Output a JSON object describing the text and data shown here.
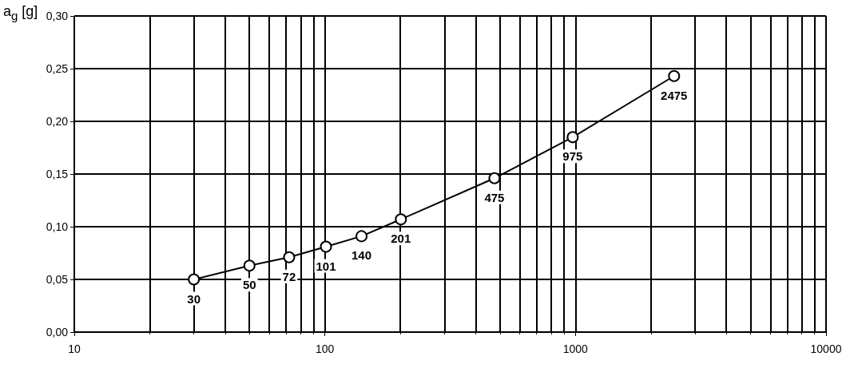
{
  "chart_data": {
    "type": "line",
    "ylabel": "a$_{g}$ [g]",
    "x": [
      30,
      50,
      72,
      101,
      140,
      201,
      475,
      975,
      2475
    ],
    "series": [
      {
        "color": "#000000",
        "values": [
          0.05,
          0.063,
          0.071,
          0.081,
          0.091,
          0.107,
          0.146,
          0.185,
          0.243
        ]
      }
    ],
    "annotations": [
      {
        "text": "30",
        "x": 30,
        "y": 0.05
      },
      {
        "text": "50",
        "x": 50,
        "y": 0.063
      },
      {
        "text": "72",
        "x": 72,
        "y": 0.071
      },
      {
        "text": "101",
        "x": 101,
        "y": 0.081
      },
      {
        "text": "140",
        "x": 140,
        "y": 0.091
      },
      {
        "text": "201",
        "x": 201,
        "y": 0.107
      },
      {
        "text": "475",
        "x": 475,
        "y": 0.146
      },
      {
        "text": "975",
        "x": 975,
        "y": 0.185
      },
      {
        "text": "2475",
        "x": 2475,
        "y": 0.243
      }
    ],
    "log": "x",
    "xlim": [
      10,
      10000
    ],
    "xticks": [
      10,
      100,
      1000,
      10000
    ],
    "ylim": [
      0,
      0.3
    ],
    "yticks": [
      {
        "value": 0,
        "label": "0,00"
      },
      {
        "value": 0.05,
        "label": "0,05"
      },
      {
        "value": 0.1,
        "label": "0,10"
      },
      {
        "value": 0.15,
        "label": "0,15"
      },
      {
        "value": 0.2,
        "label": "0,20"
      },
      {
        "value": 0.25,
        "label": "0,25"
      },
      {
        "value": 0.3,
        "label": "0,30"
      }
    ],
    "grid": true,
    "marker": "circle",
    "line_style": "solid"
  }
}
